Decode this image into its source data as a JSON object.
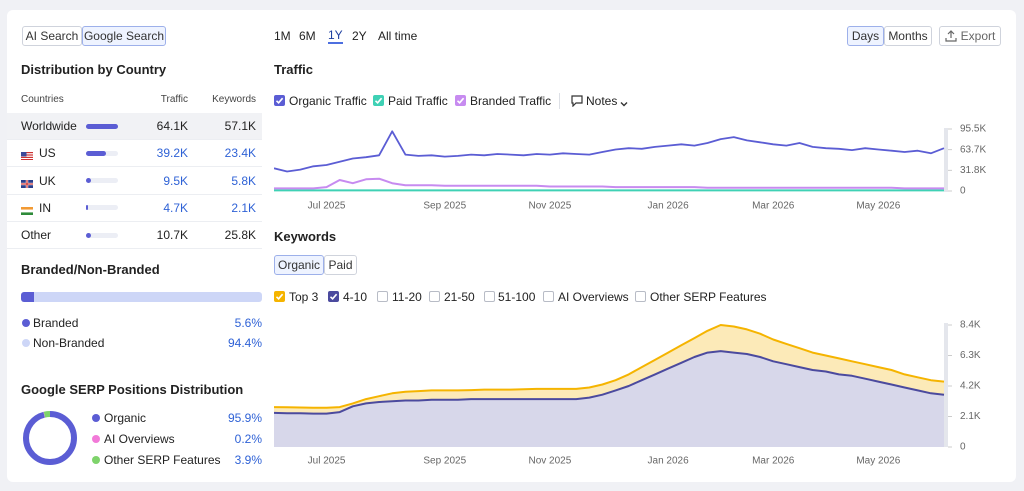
{
  "search_tabs": [
    "AI Search",
    "Google Search"
  ],
  "range_buttons": [
    "1M",
    "6M",
    "1Y",
    "2Y",
    "All time"
  ],
  "interval_buttons": [
    "Days",
    "Months"
  ],
  "export": "Export",
  "country_section": {
    "title": "Distribution by Country",
    "columns": [
      "Countries",
      "Traffic",
      "Keywords"
    ],
    "rows": [
      {
        "country": "Worldwide",
        "traffic": {
          "value": 64100,
          "label": "64.1K"
        },
        "keywords": "57.1K"
      },
      {
        "country": "US",
        "traffic": {
          "value": 39200,
          "label": "39.2K"
        },
        "keywords": "23.4K"
      },
      {
        "country": "UK",
        "traffic": {
          "value": 9500,
          "label": "9.5K"
        },
        "keywords": "5.8K"
      },
      {
        "country": "IN",
        "traffic": {
          "value": 4700,
          "label": "4.7K"
        },
        "keywords": "2.1K"
      },
      {
        "country": "Other",
        "traffic": {
          "value": 10700,
          "label": "10.7K"
        },
        "keywords": "25.8K"
      }
    ]
  },
  "branded_section": {
    "title": "Branded/Non-Branded",
    "items": [
      {
        "name": "Branded",
        "share": {
          "value": 5.6,
          "label": "5.6%"
        },
        "color": "#5b5dd4"
      },
      {
        "name": "Non-Branded",
        "share": {
          "value": 94.4,
          "label": "94.4%"
        },
        "color": "#cdd6f7"
      }
    ]
  },
  "serp_section": {
    "title": "Google SERP Positions Distribution",
    "items": [
      {
        "name": "Organic",
        "share": {
          "value": 95.9,
          "label": "95.9%"
        },
        "color": "#5b5dd4"
      },
      {
        "name": "AI Overviews",
        "share": {
          "value": 0.2,
          "label": "0.2%"
        },
        "color": "#f27ad8"
      },
      {
        "name": "Other SERP Features",
        "share": {
          "value": 3.9,
          "label": "3.9%"
        },
        "color": "#7ed36b"
      }
    ]
  },
  "notes": "Notes",
  "keywords_tabs": [
    "Organic",
    "Paid"
  ],
  "keyword_filters": [
    "11-20",
    "21-50",
    "51-100",
    "AI Overviews",
    "Other SERP Features"
  ],
  "chart_data": [
    {
      "type": "line",
      "title": "Traffic",
      "categories": [
        null,
        null,
        null,
        null,
        "Jul 2025",
        null,
        null,
        null,
        null,
        null,
        null,
        null,
        null,
        "Sep 2025",
        null,
        null,
        null,
        null,
        null,
        null,
        null,
        "Nov 2025",
        null,
        null,
        null,
        null,
        null,
        null,
        null,
        null,
        "Jan 2026",
        null,
        null,
        null,
        null,
        null,
        null,
        null,
        "Mar 2026",
        null,
        null,
        null,
        null,
        null,
        null,
        null,
        "May 2026",
        null,
        null,
        null,
        null,
        null
      ],
      "ylim": [
        0,
        95500
      ],
      "yticks": [
        0,
        {
          "value": 31800,
          "label": "31.8K"
        },
        {
          "value": 63700,
          "label": "63.7K"
        },
        {
          "value": 95500,
          "label": "95.5K"
        }
      ],
      "series": [
        {
          "name": "Organic Traffic",
          "color": "#5b5dd4",
          "values": [
            35000,
            30000,
            33000,
            38000,
            40000,
            45000,
            50000,
            52000,
            55000,
            92000,
            56000,
            54000,
            55000,
            53000,
            54000,
            56000,
            55000,
            57000,
            56000,
            55000,
            57000,
            56000,
            58000,
            57000,
            56000,
            60000,
            64000,
            66000,
            65000,
            68000,
            70000,
            72000,
            70000,
            74000,
            80000,
            83000,
            78000,
            75000,
            72000,
            70000,
            74000,
            68000,
            66000,
            65000,
            63000,
            66000,
            64000,
            62000,
            60000,
            62000,
            58000,
            66000
          ]
        },
        {
          "name": "Paid Traffic",
          "color": "#3fd1b5",
          "values": [
            1000,
            1000,
            1000,
            1000,
            1000,
            1000,
            1000,
            1000,
            1000,
            1000,
            1000,
            1000,
            1000,
            1000,
            1000,
            1000,
            1000,
            1000,
            1000,
            1000,
            1000,
            1000,
            1000,
            1000,
            1000,
            1000,
            1000,
            1000,
            1000,
            1000,
            1000,
            1000,
            1000,
            1000,
            1000,
            1000,
            1000,
            1000,
            1000,
            1000,
            1000,
            1000,
            1000,
            1000,
            1000,
            1000,
            1000,
            1000,
            1000,
            1000,
            1000,
            1000
          ]
        },
        {
          "name": "Branded Traffic",
          "color": "#c78bf0",
          "values": [
            4000,
            4000,
            4000,
            4000,
            6000,
            17000,
            12000,
            18000,
            19000,
            12000,
            9000,
            9000,
            9000,
            8000,
            8000,
            8000,
            8000,
            8000,
            8000,
            8000,
            8000,
            7000,
            7000,
            7000,
            7000,
            7000,
            6000,
            6000,
            6000,
            6000,
            6000,
            6000,
            6000,
            5000,
            5000,
            5000,
            5000,
            5000,
            5000,
            5000,
            5000,
            5000,
            5000,
            5000,
            5000,
            5000,
            5000,
            5000,
            4000,
            4000,
            4000,
            4000
          ]
        }
      ]
    },
    {
      "type": "area",
      "title": "Keywords",
      "categories": [
        null,
        null,
        null,
        null,
        "Jul 2025",
        null,
        null,
        null,
        null,
        null,
        null,
        null,
        null,
        "Sep 2025",
        null,
        null,
        null,
        null,
        null,
        null,
        null,
        "Nov 2025",
        null,
        null,
        null,
        null,
        null,
        null,
        null,
        null,
        "Jan 2026",
        null,
        null,
        null,
        null,
        null,
        null,
        null,
        "Mar 2026",
        null,
        null,
        null,
        null,
        null,
        null,
        null,
        "May 2026",
        null,
        null,
        null,
        null,
        null
      ],
      "ylim": [
        0,
        8400
      ],
      "yticks": [
        0,
        {
          "value": 2100,
          "label": "2.1K"
        },
        {
          "value": 4200,
          "label": "4.2K"
        },
        {
          "value": 6300,
          "label": "6.3K"
        },
        {
          "value": 8400,
          "label": "8.4K"
        }
      ],
      "series": [
        {
          "name": "Top 3",
          "color": "#f5b400",
          "values": [
            2750,
            2730,
            2720,
            2700,
            2700,
            2750,
            3000,
            3300,
            3500,
            3700,
            3800,
            3850,
            3900,
            3900,
            3900,
            3920,
            3950,
            3950,
            3950,
            3970,
            4000,
            4000,
            4000,
            4000,
            4100,
            4300,
            4600,
            5000,
            5500,
            6000,
            6500,
            7000,
            7500,
            8000,
            8400,
            8300,
            8100,
            7800,
            7400,
            7100,
            6800,
            6500,
            6300,
            6100,
            5900,
            5700,
            5500,
            5300,
            5000,
            4800,
            4600,
            4500
          ]
        },
        {
          "name": "4-10",
          "color": "#4b4a9e",
          "values": [
            2350,
            2330,
            2320,
            2300,
            2300,
            2400,
            2800,
            3000,
            3100,
            3150,
            3200,
            3200,
            3250,
            3250,
            3250,
            3300,
            3300,
            3300,
            3300,
            3300,
            3300,
            3300,
            3300,
            3300,
            3400,
            3600,
            3900,
            4200,
            4600,
            5000,
            5400,
            5800,
            6200,
            6500,
            6600,
            6500,
            6400,
            6200,
            5900,
            5700,
            5500,
            5300,
            5200,
            5000,
            4900,
            4700,
            4500,
            4300,
            4100,
            3900,
            3700,
            3600
          ]
        }
      ]
    }
  ]
}
